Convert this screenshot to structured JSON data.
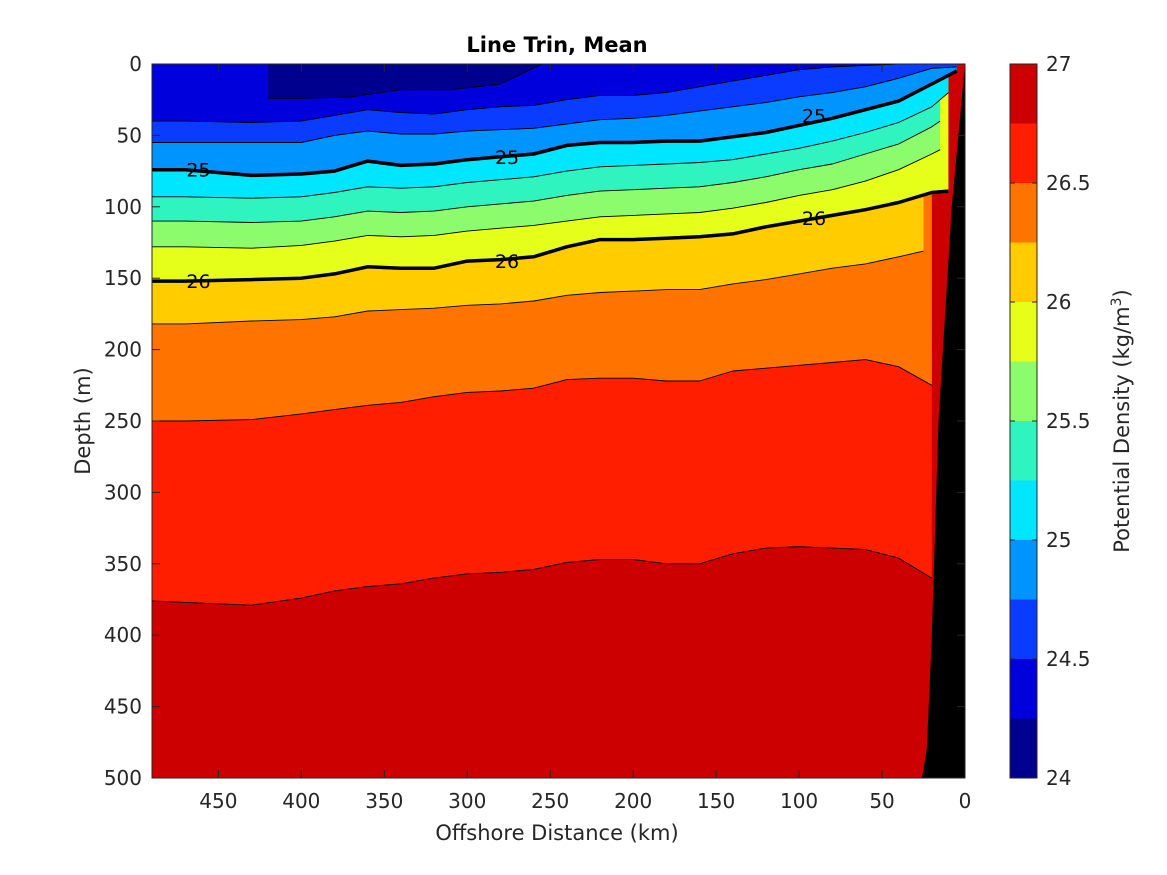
{
  "chart_data": {
    "type": "contour",
    "title": "Line Trin, Mean",
    "xlabel": "Offshore Distance (km)",
    "ylabel": "Depth (m)",
    "colorbar_label": "Potential Density (kg/m³)",
    "x_reversed": true,
    "xlim": [
      490,
      0
    ],
    "ylim": [
      0,
      500
    ],
    "y_reversed": true,
    "x_ticks": [
      450,
      400,
      350,
      300,
      250,
      200,
      150,
      100,
      50,
      0
    ],
    "x_tick_labels": [
      "450",
      "400",
      "350",
      "300",
      "250",
      "200",
      "150",
      "100",
      "50",
      "0"
    ],
    "y_ticks": [
      0,
      50,
      100,
      150,
      200,
      250,
      300,
      350,
      400,
      450,
      500
    ],
    "y_tick_labels": [
      "0",
      "50",
      "100",
      "150",
      "200",
      "250",
      "300",
      "350",
      "400",
      "450",
      "500"
    ],
    "colorbar_range": [
      24,
      27
    ],
    "colorbar_ticks": [
      24,
      24.5,
      25,
      25.5,
      26,
      26.5,
      27
    ],
    "colorbar_tick_labels": [
      "24",
      "24.5",
      "25",
      "25.5",
      "26",
      "26.5",
      "27"
    ],
    "contour_levels": [
      24.25,
      24.5,
      24.75,
      25,
      25.25,
      25.5,
      25.75,
      26,
      26.25,
      26.5,
      26.75
    ],
    "level_colors": [
      "#00008f",
      "#0000dc",
      "#0a3cff",
      "#0094ff",
      "#00e6ff",
      "#30f4c0",
      "#8cfc6c",
      "#e6ff1a",
      "#ffcc00",
      "#ff7300",
      "#ff1f00",
      "#cc0000"
    ],
    "contours": [
      {
        "level": 24.25,
        "x": [
          420,
          400,
          370,
          340,
          310,
          280,
          255
        ],
        "y": [
          24,
          24,
          23,
          18,
          18,
          14,
          0
        ]
      },
      {
        "level": 24.5,
        "x": [
          490,
          470,
          430,
          400,
          380,
          360,
          340,
          320,
          300,
          280,
          260,
          240,
          220,
          200,
          180,
          160,
          140,
          120,
          100,
          80,
          60,
          40,
          20,
          10,
          5
        ],
        "y": [
          40,
          40,
          41,
          40,
          36,
          32,
          34,
          35,
          32,
          30,
          29,
          25,
          22,
          22,
          20,
          16,
          12,
          8,
          4,
          2,
          1,
          0,
          0,
          0,
          0
        ]
      },
      {
        "level": 24.75,
        "x": [
          490,
          470,
          430,
          400,
          380,
          360,
          340,
          320,
          300,
          280,
          260,
          240,
          220,
          200,
          180,
          160,
          140,
          120,
          100,
          80,
          60,
          40,
          20,
          5
        ],
        "y": [
          55,
          55,
          55,
          55,
          50,
          47,
          49,
          49,
          47,
          46,
          45,
          42,
          39,
          38,
          36,
          33,
          30,
          27,
          23,
          20,
          16,
          10,
          3,
          2
        ]
      },
      {
        "level": 25,
        "x": [
          490,
          470,
          430,
          400,
          380,
          360,
          340,
          320,
          300,
          280,
          260,
          240,
          220,
          200,
          180,
          160,
          140,
          120,
          100,
          80,
          60,
          40,
          20,
          5
        ],
        "y": [
          74,
          74,
          78,
          77,
          75,
          68,
          71,
          70,
          67,
          65,
          63,
          57,
          55,
          55,
          54,
          54,
          51,
          48,
          43,
          38,
          32,
          26,
          14,
          5
        ],
        "bold": true
      },
      {
        "level": 25.25,
        "x": [
          490,
          470,
          430,
          400,
          380,
          360,
          340,
          320,
          300,
          280,
          260,
          240,
          220,
          200,
          180,
          160,
          140,
          120,
          100,
          80,
          60,
          40,
          20,
          10
        ],
        "y": [
          93,
          93,
          94,
          93,
          90,
          86,
          87,
          86,
          83,
          81,
          79,
          75,
          72,
          71,
          70,
          69,
          67,
          63,
          59,
          54,
          48,
          41,
          30,
          20
        ]
      },
      {
        "level": 25.5,
        "x": [
          490,
          470,
          430,
          400,
          380,
          360,
          340,
          320,
          300,
          280,
          260,
          240,
          220,
          200,
          180,
          160,
          140,
          120,
          100,
          80,
          60,
          40,
          20,
          15
        ],
        "y": [
          110,
          110,
          111,
          110,
          107,
          103,
          104,
          103,
          100,
          98,
          96,
          92,
          89,
          88,
          87,
          86,
          83,
          79,
          74,
          70,
          63,
          56,
          44,
          40
        ]
      },
      {
        "level": 25.75,
        "x": [
          490,
          470,
          430,
          400,
          380,
          360,
          340,
          320,
          300,
          280,
          260,
          240,
          220,
          200,
          180,
          160,
          140,
          120,
          100,
          80,
          60,
          40,
          20,
          15
        ],
        "y": [
          128,
          128,
          129,
          127,
          124,
          120,
          121,
          120,
          117,
          115,
          113,
          110,
          107,
          106,
          105,
          104,
          101,
          97,
          92,
          88,
          82,
          74,
          63,
          60
        ]
      },
      {
        "level": 26,
        "x": [
          490,
          470,
          430,
          400,
          380,
          360,
          340,
          320,
          300,
          280,
          260,
          240,
          220,
          200,
          180,
          160,
          140,
          120,
          100,
          80,
          60,
          40,
          20,
          10
        ],
        "y": [
          152,
          152,
          151,
          150,
          147,
          142,
          143,
          143,
          138,
          137,
          135,
          128,
          123,
          123,
          122,
          121,
          119,
          114,
          110,
          106,
          102,
          97,
          90,
          89
        ],
        "bold": true
      },
      {
        "level": 26.25,
        "x": [
          490,
          470,
          430,
          400,
          380,
          360,
          340,
          320,
          300,
          280,
          260,
          240,
          220,
          200,
          180,
          160,
          140,
          120,
          100,
          80,
          60,
          40,
          25
        ],
        "y": [
          182,
          182,
          180,
          179,
          177,
          173,
          172,
          171,
          169,
          168,
          166,
          162,
          160,
          159,
          158,
          158,
          154,
          151,
          147,
          143,
          140,
          135,
          131
        ]
      },
      {
        "level": 26.5,
        "x": [
          490,
          470,
          430,
          400,
          380,
          360,
          340,
          320,
          300,
          280,
          260,
          240,
          220,
          200,
          180,
          160,
          140,
          120,
          100,
          80,
          60,
          40,
          20
        ],
        "y": [
          250,
          250,
          249,
          245,
          242,
          239,
          237,
          233,
          230,
          229,
          227,
          221,
          220,
          220,
          222,
          222,
          215,
          213,
          211,
          209,
          207,
          212,
          225
        ]
      },
      {
        "level": 26.75,
        "x": [
          490,
          470,
          430,
          400,
          380,
          360,
          340,
          320,
          300,
          280,
          260,
          240,
          220,
          200,
          180,
          160,
          140,
          120,
          100,
          80,
          60,
          40,
          20
        ],
        "y": [
          376,
          377,
          379,
          374,
          369,
          366,
          364,
          360,
          357,
          356,
          354,
          349,
          347,
          347,
          350,
          350,
          343,
          339,
          338,
          339,
          340,
          346,
          360
        ]
      }
    ],
    "contour_labels": [
      {
        "text": "25",
        "x": 462,
        "y": 74
      },
      {
        "text": "25",
        "x": 276,
        "y": 65
      },
      {
        "text": "25",
        "x": 91,
        "y": 36
      },
      {
        "text": "26",
        "x": 462,
        "y": 152
      },
      {
        "text": "26",
        "x": 276,
        "y": 138
      },
      {
        "text": "26",
        "x": 91,
        "y": 108
      }
    ],
    "bottom_boundary": {
      "x": [
        0,
        8,
        16,
        20,
        23,
        26
      ],
      "y": [
        0,
        100,
        250,
        400,
        480,
        500
      ]
    }
  }
}
